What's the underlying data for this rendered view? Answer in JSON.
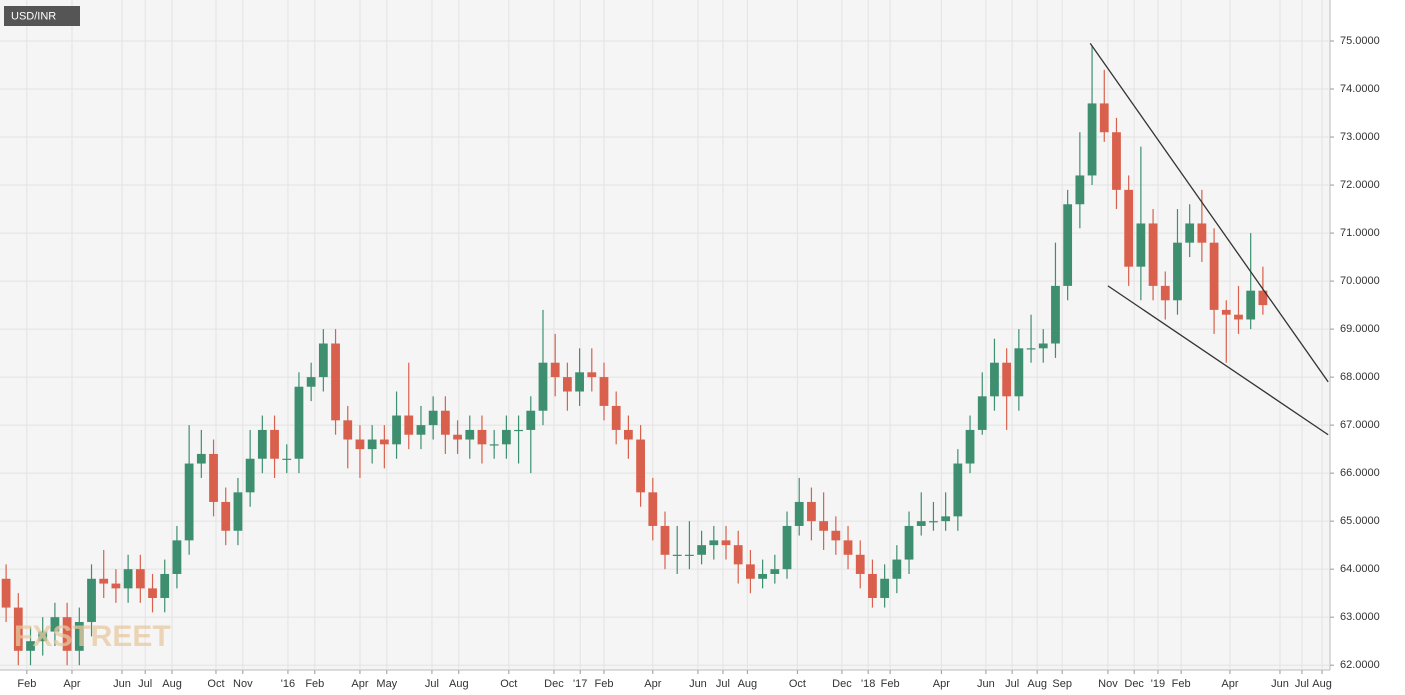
{
  "chart_data": {
    "type": "candlestick",
    "title": "USD/INR",
    "watermark": "FXSTREET",
    "up_color": "#3d8f70",
    "down_color": "#d9604c",
    "grid": true,
    "xlim": [
      0,
      218
    ],
    "ylim": [
      61.9,
      75.75
    ],
    "yticks": [
      {
        "value": 62,
        "label": "62.0000"
      },
      {
        "value": 63,
        "label": "63.0000"
      },
      {
        "value": 64,
        "label": "64.0000"
      },
      {
        "value": 65,
        "label": "65.0000"
      },
      {
        "value": 66,
        "label": "66.0000"
      },
      {
        "value": 67,
        "label": "67.0000"
      },
      {
        "value": 68,
        "label": "68.0000"
      },
      {
        "value": 69,
        "label": "69.0000"
      },
      {
        "value": 70,
        "label": "70.0000"
      },
      {
        "value": 71,
        "label": "71.0000"
      },
      {
        "value": 72,
        "label": "72.0000"
      },
      {
        "value": 73,
        "label": "73.0000"
      },
      {
        "value": 74,
        "label": "74.0000"
      },
      {
        "value": 75,
        "label": "75.0000"
      }
    ],
    "xticks": [
      {
        "value": 4.4,
        "label": "Feb"
      },
      {
        "value": 11.8,
        "label": "Apr"
      },
      {
        "value": 20,
        "label": "Jun"
      },
      {
        "value": 23.8,
        "label": "Jul"
      },
      {
        "value": 28.2,
        "label": "Aug"
      },
      {
        "value": 35.4,
        "label": "Oct"
      },
      {
        "value": 39.8,
        "label": "Nov"
      },
      {
        "value": 47.2,
        "label": "'16"
      },
      {
        "value": 51.6,
        "label": "Feb"
      },
      {
        "value": 59,
        "label": "Apr"
      },
      {
        "value": 63.4,
        "label": "May"
      },
      {
        "value": 70.8,
        "label": "Jul"
      },
      {
        "value": 75.2,
        "label": "Aug"
      },
      {
        "value": 83.4,
        "label": "Oct"
      },
      {
        "value": 90.8,
        "label": "Dec"
      },
      {
        "value": 95.1,
        "label": "'17"
      },
      {
        "value": 99,
        "label": "Feb"
      },
      {
        "value": 107,
        "label": "Apr"
      },
      {
        "value": 114.4,
        "label": "Jun"
      },
      {
        "value": 118.5,
        "label": "Jul"
      },
      {
        "value": 122.5,
        "label": "Aug"
      },
      {
        "value": 130.7,
        "label": "Oct"
      },
      {
        "value": 138,
        "label": "Dec"
      },
      {
        "value": 142.3,
        "label": "'18"
      },
      {
        "value": 145.9,
        "label": "Feb"
      },
      {
        "value": 154.3,
        "label": "Apr"
      },
      {
        "value": 161.6,
        "label": "Jun"
      },
      {
        "value": 165.9,
        "label": "Jul"
      },
      {
        "value": 170,
        "label": "Aug"
      },
      {
        "value": 174.1,
        "label": "Sep"
      },
      {
        "value": 181.6,
        "label": "Nov"
      },
      {
        "value": 185.9,
        "label": "Dec"
      },
      {
        "value": 189.8,
        "label": "'19"
      },
      {
        "value": 193.6,
        "label": "Feb"
      },
      {
        "value": 201.6,
        "label": "Apr"
      },
      {
        "value": 209.8,
        "label": "Jun"
      },
      {
        "value": 213.4,
        "label": "Jul"
      },
      {
        "value": 216.7,
        "label": "Aug"
      }
    ],
    "x": [
      1,
      3,
      5,
      7,
      9,
      11,
      13,
      15,
      17,
      19,
      21,
      23,
      25,
      27,
      29,
      31,
      33,
      35,
      37,
      39,
      41,
      43,
      45,
      47,
      49,
      51,
      53,
      55,
      57,
      59,
      61,
      63,
      65,
      67,
      69,
      71,
      73,
      75,
      77,
      79,
      81,
      83,
      85,
      87,
      89,
      91,
      93,
      95,
      97,
      99,
      101,
      103,
      105,
      107,
      109,
      111,
      113,
      115,
      117,
      119,
      121,
      123,
      125,
      127,
      129,
      131,
      133,
      135,
      137,
      139,
      141,
      143,
      145,
      147,
      149,
      151,
      153,
      155,
      157,
      159,
      161,
      163,
      165,
      167,
      169,
      171,
      173,
      175,
      177,
      179,
      181,
      183,
      185,
      187,
      189,
      191,
      193,
      195,
      197,
      199,
      201,
      203,
      205,
      207
    ],
    "open": [
      63.8,
      63.2,
      62.3,
      62.5,
      62.7,
      63.0,
      62.3,
      62.9,
      63.8,
      63.7,
      63.6,
      64.0,
      63.6,
      63.4,
      63.9,
      64.6,
      66.2,
      66.4,
      65.4,
      64.8,
      65.6,
      66.3,
      66.9,
      66.3,
      66.3,
      67.8,
      68.0,
      68.7,
      67.1,
      66.7,
      66.5,
      66.7,
      66.6,
      67.2,
      66.8,
      67.0,
      67.3,
      66.8,
      66.7,
      66.9,
      66.6,
      66.6,
      66.9,
      66.9,
      67.3,
      68.3,
      68.0,
      67.7,
      68.1,
      68.0,
      67.4,
      66.9,
      66.7,
      65.6,
      64.9,
      64.3,
      64.3,
      64.3,
      64.5,
      64.6,
      64.5,
      64.1,
      63.8,
      63.9,
      64.0,
      64.9,
      65.4,
      65.0,
      64.8,
      64.6,
      64.3,
      63.9,
      63.4,
      63.8,
      64.2,
      64.9,
      65.0,
      65.0,
      65.1,
      66.2,
      66.9,
      67.6,
      68.3,
      67.6,
      68.6,
      68.6,
      68.7,
      69.9,
      71.6,
      72.2,
      73.7,
      73.1,
      71.9,
      70.3,
      71.2,
      69.9,
      69.6,
      70.8,
      71.2,
      70.8,
      69.4,
      69.3,
      69.2,
      69.8
    ],
    "high": [
      64.1,
      63.5,
      62.8,
      63.0,
      63.3,
      63.3,
      63.2,
      64.1,
      64.4,
      64.0,
      64.3,
      64.3,
      63.9,
      64.2,
      64.9,
      67.0,
      66.9,
      66.7,
      65.7,
      65.9,
      66.9,
      67.2,
      67.2,
      66.6,
      68.1,
      68.3,
      69.0,
      69.0,
      67.4,
      67.0,
      67.0,
      67.0,
      67.7,
      68.3,
      67.4,
      67.6,
      67.6,
      67.1,
      67.2,
      67.2,
      66.9,
      67.2,
      67.2,
      67.6,
      69.4,
      68.9,
      68.3,
      68.6,
      68.6,
      68.3,
      67.7,
      67.2,
      67.0,
      65.9,
      65.2,
      64.9,
      65.0,
      64.8,
      64.9,
      64.9,
      64.8,
      64.4,
      64.2,
      64.3,
      65.2,
      65.9,
      65.7,
      65.6,
      65.1,
      64.9,
      64.6,
      64.2,
      64.1,
      64.5,
      65.2,
      65.6,
      65.4,
      65.6,
      66.5,
      67.2,
      68.1,
      68.8,
      68.6,
      69.0,
      69.3,
      69.0,
      70.8,
      71.9,
      73.1,
      74.9,
      74.4,
      73.4,
      72.2,
      72.8,
      71.5,
      70.2,
      71.5,
      71.6,
      71.9,
      71.1,
      69.6,
      69.9,
      71.0,
      70.3
    ],
    "low": [
      62.9,
      62.0,
      62.0,
      62.2,
      62.4,
      62.0,
      62.0,
      62.6,
      63.4,
      63.3,
      63.3,
      63.3,
      63.1,
      63.1,
      63.6,
      64.3,
      65.9,
      65.1,
      64.5,
      64.5,
      65.3,
      66.0,
      65.9,
      66.0,
      66.0,
      67.5,
      67.7,
      66.8,
      66.1,
      65.9,
      66.2,
      66.1,
      66.3,
      66.5,
      66.5,
      66.7,
      66.4,
      66.4,
      66.3,
      66.2,
      66.3,
      66.3,
      66.2,
      66.0,
      67.0,
      67.6,
      67.3,
      67.4,
      67.7,
      67.1,
      66.6,
      66.3,
      65.3,
      64.6,
      64.0,
      63.9,
      64.0,
      64.1,
      64.2,
      64.2,
      63.7,
      63.5,
      63.6,
      63.7,
      63.8,
      64.7,
      64.6,
      64.4,
      64.3,
      64.0,
      63.6,
      63.2,
      63.2,
      63.5,
      63.9,
      64.7,
      64.8,
      64.8,
      64.8,
      66.0,
      66.8,
      67.3,
      66.9,
      67.3,
      68.3,
      68.3,
      68.4,
      69.6,
      71.1,
      72.0,
      72.9,
      71.5,
      69.9,
      69.6,
      69.6,
      69.2,
      69.3,
      70.5,
      70.4,
      68.9,
      68.3,
      68.9,
      69.0,
      69.3
    ],
    "close": [
      63.2,
      62.3,
      62.5,
      62.7,
      63.0,
      62.3,
      62.9,
      63.8,
      63.7,
      63.6,
      64.0,
      63.6,
      63.4,
      63.9,
      64.6,
      66.2,
      66.4,
      65.4,
      64.8,
      65.6,
      66.3,
      66.9,
      66.3,
      66.3,
      67.8,
      68.0,
      68.7,
      67.1,
      66.7,
      66.5,
      66.7,
      66.6,
      67.2,
      66.8,
      67.0,
      67.3,
      66.8,
      66.7,
      66.9,
      66.6,
      66.6,
      66.9,
      66.9,
      67.3,
      68.3,
      68.0,
      67.7,
      68.1,
      68.0,
      67.4,
      66.9,
      66.7,
      65.6,
      64.9,
      64.3,
      64.3,
      64.3,
      64.5,
      64.6,
      64.5,
      64.1,
      63.8,
      63.9,
      64.0,
      64.9,
      65.4,
      65.0,
      64.8,
      64.6,
      64.3,
      63.9,
      63.4,
      63.8,
      64.2,
      64.9,
      65.0,
      65.0,
      65.1,
      66.2,
      66.9,
      67.6,
      68.3,
      67.6,
      68.6,
      68.6,
      68.7,
      69.9,
      71.6,
      72.2,
      73.7,
      73.1,
      71.9,
      70.3,
      71.2,
      69.9,
      69.6,
      70.8,
      71.2,
      70.8,
      69.4,
      69.3,
      69.2,
      69.8,
      69.5
    ],
    "trendlines": [
      {
        "color": "#333333",
        "x": [
          178.7,
          217.7
        ],
        "y": [
          74.95,
          67.9
        ]
      },
      {
        "color": "#333333",
        "x": [
          181.6,
          217.7
        ],
        "y": [
          69.9,
          66.8
        ]
      }
    ]
  }
}
